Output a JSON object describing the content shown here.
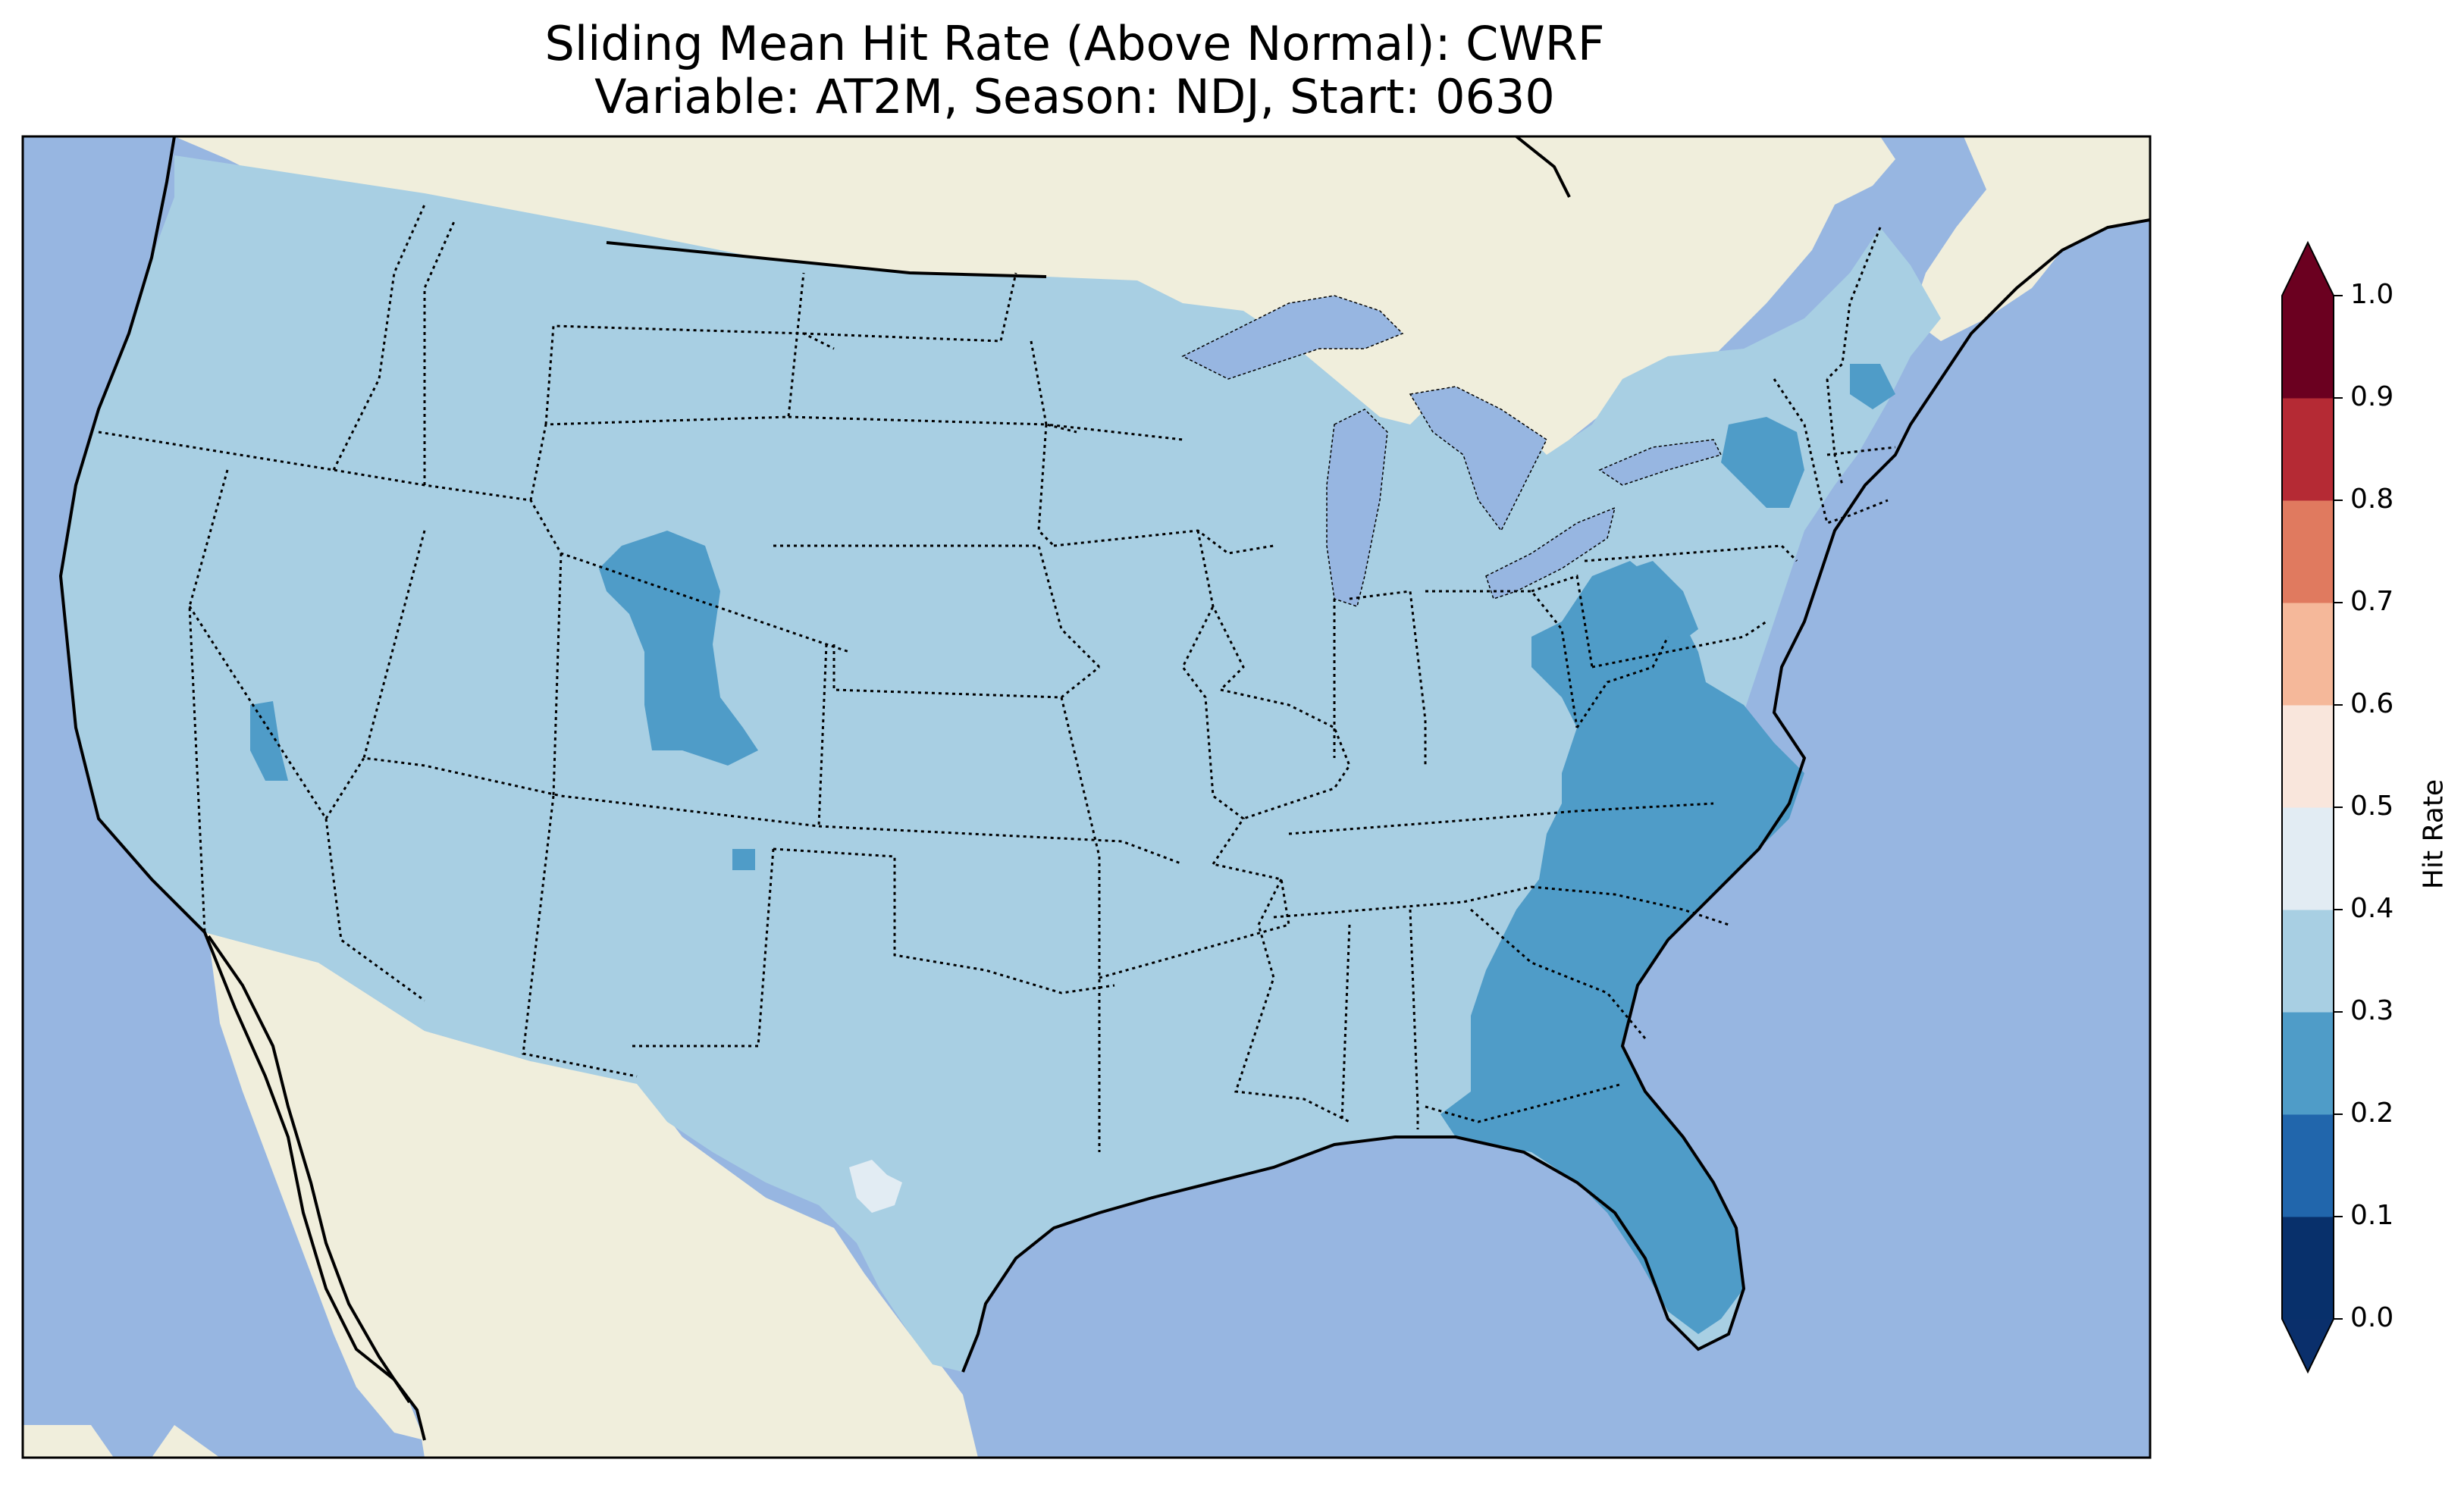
{
  "title": "Sliding Mean Hit Rate (Above Normal): CWRF",
  "subtitle": "Variable: AT2M, Season: NDJ, Start: 0630",
  "colorbar": {
    "label": "Hit Rate",
    "ticks": [
      "0.0",
      "0.1",
      "0.2",
      "0.3",
      "0.4",
      "0.5",
      "0.6",
      "0.7",
      "0.8",
      "0.9",
      "1.0"
    ],
    "colors": [
      "#08306b",
      "#2166ac",
      "#4f9cc8",
      "#a8cfe3",
      "#e2ecf3",
      "#f9e6dc",
      "#f5b89a",
      "#e07a5f",
      "#b52a34",
      "#6b0020"
    ],
    "under_color": "#0a2f6b",
    "over_color": "#6b0020"
  },
  "map_colors": {
    "ocean": "#97b6e1",
    "land": "#f0eedc",
    "hit_03_04": "#a8cfe3",
    "hit_02_03": "#4f9cc8",
    "hit_04_05": "#e2ecf3"
  },
  "regions": [
    {
      "name": "contiguous-us",
      "value_range": "0.3-0.4"
    },
    {
      "name": "wyoming-colorado",
      "value_range": "0.2-0.3"
    },
    {
      "name": "southeast-us",
      "value_range": "0.2-0.3"
    },
    {
      "name": "pennsylvania-west-virginia",
      "value_range": "0.2-0.3"
    },
    {
      "name": "new-york-upstate",
      "value_range": "0.2-0.3"
    },
    {
      "name": "nevada-west",
      "value_range": "0.2-0.3"
    },
    {
      "name": "south-texas",
      "value_range": "0.4-0.5"
    }
  ]
}
